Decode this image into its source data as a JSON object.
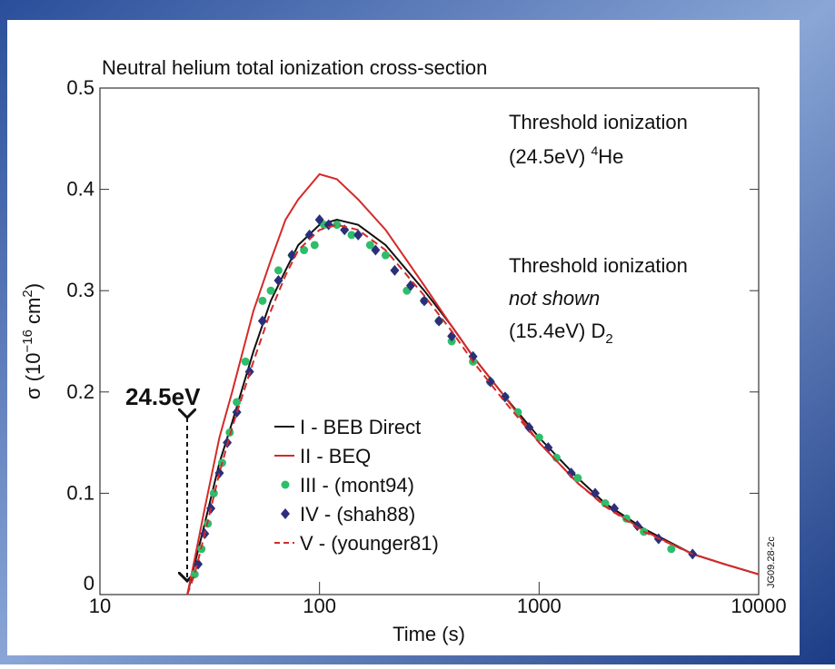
{
  "chart_data": {
    "type": "line",
    "title": "Neutral helium total ionization cross-section",
    "x_label": "Time (s)",
    "y_label": {
      "pre": "σ (10",
      "sup1": "−16",
      "mid": " cm",
      "sup2": "2",
      "post": ")"
    },
    "log_x": true,
    "xlim": [
      10,
      10000
    ],
    "xticks": [
      10,
      100,
      1000,
      10000
    ],
    "ylim": [
      0,
      0.5
    ],
    "yticks": [
      0,
      0.1,
      0.2,
      0.3,
      0.4,
      0.5
    ],
    "annotations": {
      "he": {
        "line1": "Threshold ionization",
        "line2": "(24.5eV) ",
        "sup": "4",
        "tail": "He"
      },
      "d2": {
        "line1": "Threshold ionization",
        "line2": "not shown",
        "line3": "(15.4eV) D",
        "sub": "2"
      },
      "arrow_label": "24.5eV",
      "figure_id": "JG09.28-2c"
    },
    "series": [
      {
        "name": "I - BEB Direct",
        "color": "#111111",
        "style": "solid",
        "x": [
          25,
          27,
          30,
          35,
          40,
          50,
          60,
          70,
          80,
          100,
          120,
          150,
          200,
          300,
          400,
          500,
          700,
          1000,
          1500,
          2000,
          3000,
          5000,
          7000,
          10000
        ],
        "values": [
          0,
          0.03,
          0.07,
          0.13,
          0.17,
          0.24,
          0.29,
          0.32,
          0.345,
          0.365,
          0.37,
          0.365,
          0.345,
          0.3,
          0.265,
          0.235,
          0.195,
          0.155,
          0.115,
          0.09,
          0.065,
          0.04,
          0.03,
          0.02
        ]
      },
      {
        "name": "II - BEQ",
        "color": "#d42a2a",
        "style": "solid",
        "x": [
          25,
          27,
          30,
          35,
          40,
          50,
          60,
          70,
          80,
          100,
          120,
          150,
          200,
          300,
          400,
          500,
          700,
          1000,
          1500,
          2000,
          3000,
          5000,
          7000,
          10000
        ],
        "values": [
          0,
          0.035,
          0.085,
          0.155,
          0.2,
          0.28,
          0.33,
          0.37,
          0.39,
          0.415,
          0.41,
          0.39,
          0.36,
          0.305,
          0.265,
          0.235,
          0.195,
          0.15,
          0.11,
          0.088,
          0.063,
          0.04,
          0.03,
          0.02
        ]
      },
      {
        "name": "III - (mont94)",
        "color": "#2ebd6b",
        "style": "dot",
        "x": [
          27,
          29,
          31,
          33,
          36,
          39,
          42,
          46,
          55,
          60,
          65,
          75,
          85,
          95,
          105,
          120,
          140,
          170,
          200,
          250,
          300,
          350,
          400,
          500,
          600,
          700,
          800,
          1000,
          1200,
          1500,
          2000,
          2500,
          3000,
          4000
        ],
        "values": [
          0.02,
          0.045,
          0.07,
          0.1,
          0.13,
          0.16,
          0.19,
          0.23,
          0.29,
          0.3,
          0.32,
          0.335,
          0.34,
          0.345,
          0.365,
          0.365,
          0.355,
          0.345,
          0.335,
          0.3,
          0.29,
          0.27,
          0.25,
          0.23,
          0.21,
          0.195,
          0.18,
          0.155,
          0.135,
          0.115,
          0.09,
          0.075,
          0.062,
          0.045
        ]
      },
      {
        "name": "IV - (shah88)",
        "color": "#2b2f7a",
        "style": "diamond",
        "x": [
          28,
          30,
          32,
          35,
          38,
          42,
          48,
          55,
          65,
          75,
          90,
          100,
          110,
          130,
          150,
          180,
          220,
          260,
          300,
          350,
          400,
          500,
          600,
          700,
          900,
          1100,
          1400,
          1800,
          2200,
          2800,
          3500,
          5000
        ],
        "values": [
          0.03,
          0.06,
          0.085,
          0.12,
          0.15,
          0.18,
          0.22,
          0.27,
          0.31,
          0.335,
          0.355,
          0.37,
          0.365,
          0.36,
          0.355,
          0.34,
          0.32,
          0.305,
          0.29,
          0.27,
          0.255,
          0.235,
          0.21,
          0.195,
          0.165,
          0.145,
          0.12,
          0.1,
          0.085,
          0.068,
          0.055,
          0.04
        ]
      },
      {
        "name": "V - (younger81)",
        "color": "#d42a2a",
        "style": "dashed",
        "x": [
          25,
          27,
          30,
          35,
          40,
          50,
          60,
          70,
          80,
          100,
          120,
          150,
          200,
          300,
          400,
          500,
          700,
          1000,
          1500,
          2000,
          3000,
          5000,
          7000,
          10000
        ],
        "values": [
          0,
          0.02,
          0.06,
          0.12,
          0.165,
          0.23,
          0.28,
          0.315,
          0.34,
          0.36,
          0.365,
          0.36,
          0.34,
          0.295,
          0.26,
          0.23,
          0.19,
          0.15,
          0.11,
          0.087,
          0.062,
          0.04,
          0.03,
          0.02
        ]
      }
    ]
  }
}
